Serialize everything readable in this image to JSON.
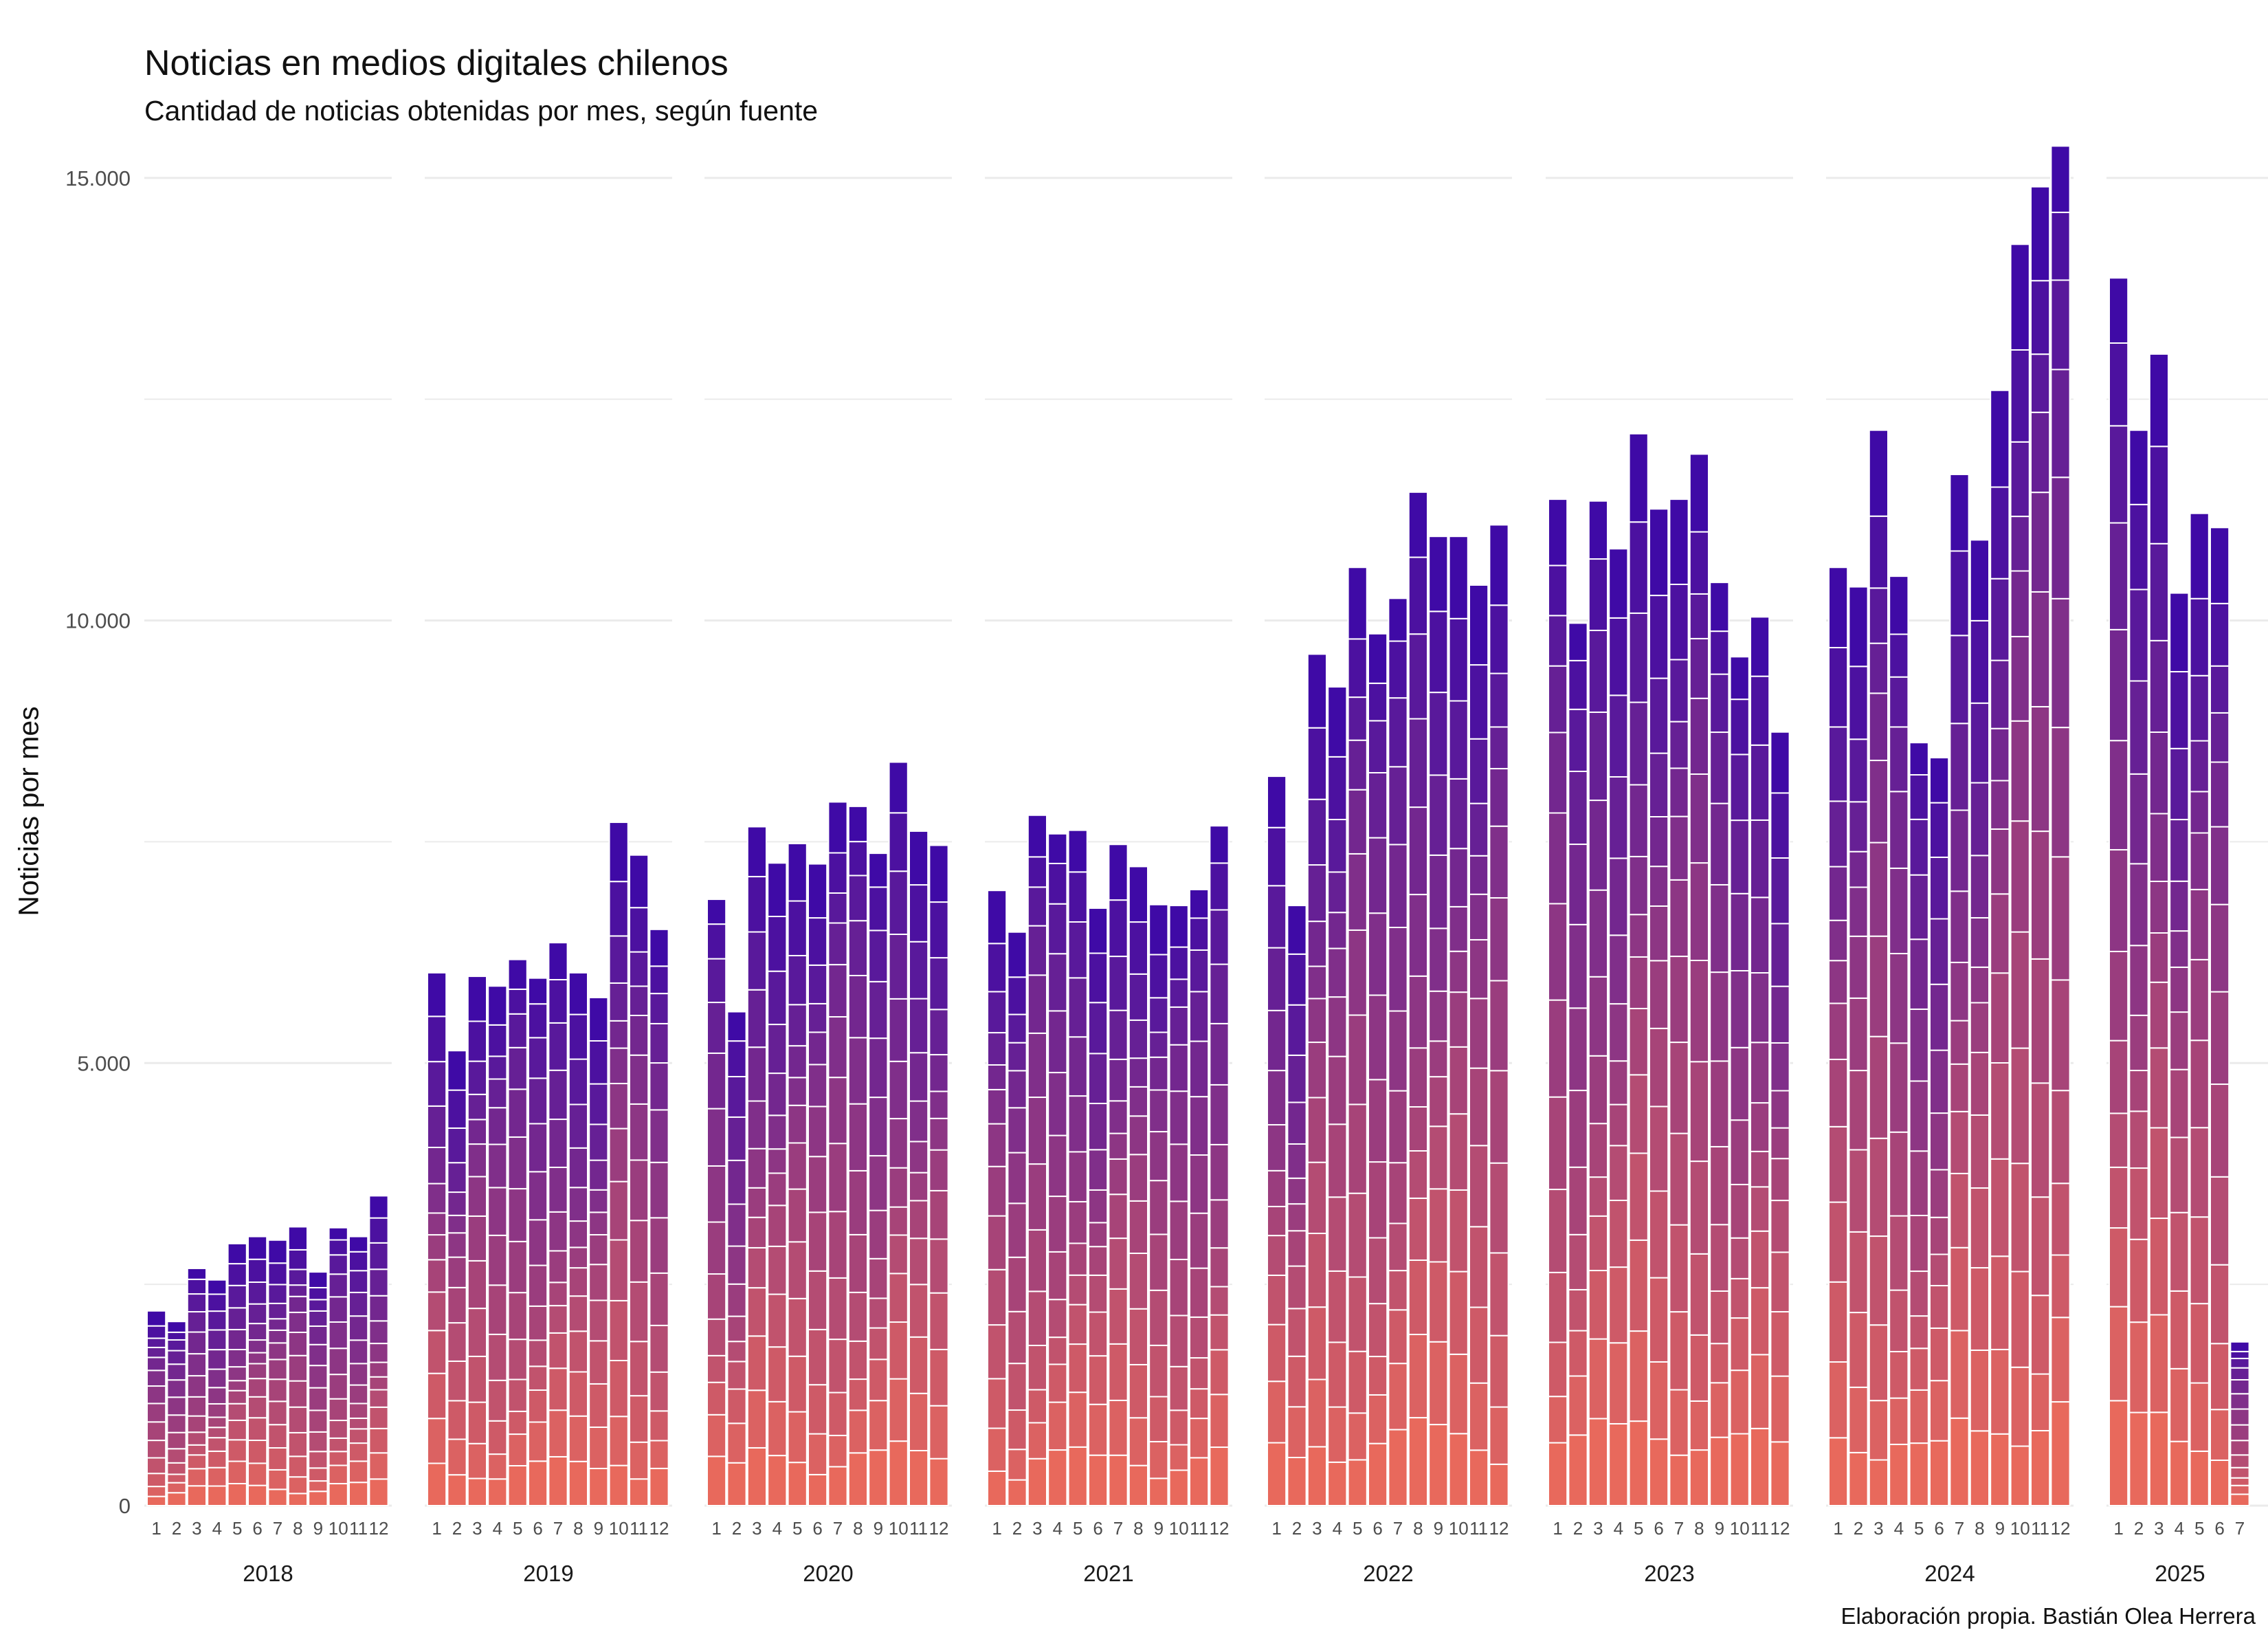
{
  "title": "Noticias en medios digitales chilenos",
  "subtitle": "Cantidad de noticias obtenidas por mes, según fuente",
  "caption": "Elaboración propia. Bastián Olea Herrera",
  "chart_data": {
    "type": "bar",
    "stacked": true,
    "faceted_by": "year",
    "title": "Noticias en medios digitales chilenos",
    "subtitle": "Cantidad de noticias obtenidas por mes, según fuente",
    "xlabel": "",
    "ylabel": "Noticias por mes",
    "ylim": [
      0,
      15400
    ],
    "yticks": [
      0,
      5000,
      10000,
      15000
    ],
    "ytick_labels": [
      "0",
      "5.000",
      "10.000",
      "15.000"
    ],
    "grid": true,
    "legend": "none",
    "color_gradient": [
      "#e8695c",
      "#3f0aa6"
    ],
    "years": [
      {
        "year": "2018",
        "months": [
          "1",
          "2",
          "3",
          "4",
          "5",
          "6",
          "7",
          "8",
          "9",
          "10",
          "11",
          "12"
        ],
        "totals": [
          2200,
          2080,
          2680,
          2550,
          2960,
          3040,
          3000,
          3150,
          2640,
          3140,
          3040,
          3500
        ]
      },
      {
        "year": "2019",
        "months": [
          "1",
          "2",
          "3",
          "4",
          "5",
          "6",
          "7",
          "8",
          "9",
          "10",
          "11",
          "12"
        ],
        "totals": [
          6020,
          5140,
          5980,
          5870,
          6170,
          5960,
          6360,
          6020,
          5740,
          7720,
          7350,
          6510
        ]
      },
      {
        "year": "2020",
        "months": [
          "1",
          "2",
          "3",
          "4",
          "5",
          "6",
          "7",
          "8",
          "9",
          "10",
          "11",
          "12"
        ],
        "totals": [
          6850,
          5580,
          7670,
          7260,
          7480,
          7250,
          7950,
          7900,
          7370,
          8400,
          7620,
          7460
        ]
      },
      {
        "year": "2021",
        "months": [
          "1",
          "2",
          "3",
          "4",
          "5",
          "6",
          "7",
          "8",
          "9",
          "10",
          "11",
          "12"
        ],
        "totals": [
          6950,
          6480,
          7800,
          7590,
          7630,
          6750,
          7470,
          7220,
          6790,
          6780,
          6960,
          7680
        ]
      },
      {
        "year": "2022",
        "months": [
          "1",
          "2",
          "3",
          "4",
          "5",
          "6",
          "7",
          "8",
          "9",
          "10",
          "11",
          "12"
        ],
        "totals": [
          8240,
          6780,
          9620,
          9250,
          10600,
          9850,
          10250,
          11450,
          10950,
          10950,
          10400,
          11080
        ]
      },
      {
        "year": "2023",
        "months": [
          "1",
          "2",
          "3",
          "4",
          "5",
          "6",
          "7",
          "8",
          "9",
          "10",
          "11",
          "12"
        ],
        "totals": [
          11370,
          9970,
          11350,
          10810,
          12110,
          11260,
          11370,
          11880,
          10430,
          9590,
          10040,
          8740
        ]
      },
      {
        "year": "2024",
        "months": [
          "1",
          "2",
          "3",
          "4",
          "5",
          "6",
          "7",
          "8",
          "9",
          "10",
          "11",
          "12"
        ],
        "totals": [
          10600,
          10380,
          12150,
          10500,
          8620,
          8450,
          11650,
          10910,
          12600,
          14250,
          14900,
          15360
        ]
      },
      {
        "year": "2025",
        "months": [
          "1",
          "2",
          "3",
          "4",
          "5",
          "6",
          "7"
        ],
        "totals": [
          13870,
          12150,
          13010,
          10310,
          11210,
          11050,
          1850
        ]
      }
    ]
  }
}
